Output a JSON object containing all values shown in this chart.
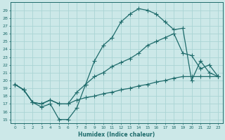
{
  "xlabel": "Humidex (Indice chaleur)",
  "bg_color": "#cce8e8",
  "grid_color": "#aad4d4",
  "line_color": "#1e6b6b",
  "xlim": [
    -0.5,
    23.5
  ],
  "ylim": [
    14.5,
    30.0
  ],
  "xticks": [
    0,
    1,
    2,
    3,
    4,
    5,
    6,
    7,
    8,
    9,
    10,
    11,
    12,
    13,
    14,
    15,
    16,
    17,
    18,
    19,
    20,
    21,
    22,
    23
  ],
  "yticks": [
    15,
    16,
    17,
    18,
    19,
    20,
    21,
    22,
    23,
    24,
    25,
    26,
    27,
    28,
    29
  ],
  "line1_x": [
    0,
    1,
    2,
    3,
    4,
    5,
    6,
    7,
    8,
    9,
    10,
    11,
    12,
    13,
    14,
    15,
    16,
    17,
    18,
    19,
    20,
    21,
    22,
    23
  ],
  "line1_y": [
    19.5,
    18.8,
    17.2,
    16.6,
    17.0,
    15.0,
    15.0,
    16.5,
    19.5,
    22.5,
    24.5,
    25.5,
    27.5,
    28.5,
    29.2,
    29.0,
    28.5,
    27.5,
    26.5,
    26.7,
    20.0,
    22.5,
    21.0,
    20.5
  ],
  "line2_x": [
    0,
    1,
    2,
    3,
    4,
    5,
    6,
    7,
    8,
    9,
    10,
    11,
    12,
    13,
    14,
    15,
    16,
    17,
    18,
    19,
    20,
    21,
    22,
    23
  ],
  "line2_y": [
    19.5,
    18.8,
    17.2,
    17.0,
    17.5,
    17.0,
    17.0,
    18.5,
    19.5,
    20.5,
    21.0,
    21.8,
    22.3,
    22.8,
    23.5,
    24.5,
    25.0,
    25.5,
    26.0,
    23.5,
    23.2,
    21.5,
    22.0,
    20.5
  ],
  "line3_x": [
    0,
    1,
    2,
    3,
    4,
    5,
    6,
    7,
    8,
    9,
    10,
    11,
    12,
    13,
    14,
    15,
    16,
    17,
    18,
    19,
    20,
    21,
    22,
    23
  ],
  "line3_y": [
    19.5,
    18.8,
    17.2,
    17.0,
    17.5,
    17.0,
    17.0,
    17.5,
    17.8,
    18.0,
    18.3,
    18.5,
    18.8,
    19.0,
    19.3,
    19.5,
    19.8,
    20.0,
    20.3,
    20.5,
    20.5,
    20.5,
    20.5,
    20.5
  ]
}
